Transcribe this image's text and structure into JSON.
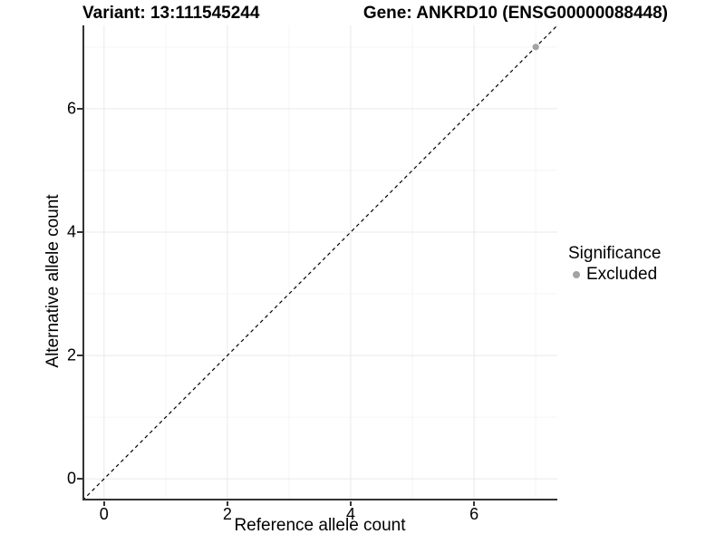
{
  "chart_data": {
    "type": "scatter",
    "title_left": "Variant: 13:111545244",
    "title_right": "Gene: ANKRD10 (ENSG00000088448)",
    "xlabel": "Reference allele count",
    "ylabel": "Alternative allele count",
    "xlim": [
      -0.35,
      7.35
    ],
    "ylim": [
      -0.35,
      7.35
    ],
    "x_ticks": [
      0,
      2,
      4,
      6
    ],
    "y_ticks": [
      0,
      2,
      4,
      6
    ],
    "minor_ticks": [
      1,
      3,
      5,
      7
    ],
    "grid": true,
    "reference_line": {
      "type": "identity",
      "style": "dashed",
      "color": "#000000"
    },
    "series": [
      {
        "name": "Excluded",
        "color": "#a3a3a3",
        "points": [
          {
            "x": 7,
            "y": 7
          }
        ]
      }
    ],
    "legend": {
      "title": "Significance",
      "position": "right",
      "items": [
        {
          "label": "Excluded",
          "color": "#a3a3a3"
        }
      ]
    },
    "colors": {
      "grid_major": "#e9e9e9",
      "grid_minor": "#f5f5f5",
      "axis_line": "#333333",
      "text": "#000000"
    }
  }
}
